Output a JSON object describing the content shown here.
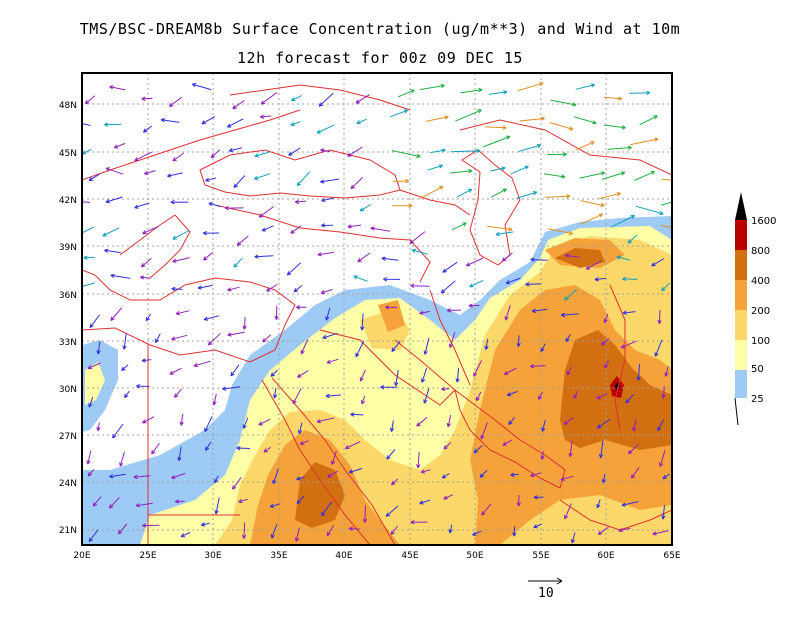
{
  "title": {
    "line1": "TMS/BSC-DREAM8b Surface Concentration (ug/m**3) and Wind at 10m",
    "line2": "12h forecast for 00z 09 DEC 15"
  },
  "map": {
    "lon_range": [
      20,
      65
    ],
    "lat_range": [
      20,
      50
    ],
    "x_ticks": [
      "20E",
      "25E",
      "30E",
      "35E",
      "40E",
      "45E",
      "50E",
      "55E",
      "60E",
      "65E"
    ],
    "y_ticks": [
      "21N",
      "24N",
      "27N",
      "30N",
      "33N",
      "36N",
      "39N",
      "42N",
      "45N",
      "48N"
    ],
    "gridlines": true,
    "borders_color": "#e03030"
  },
  "colorbar": {
    "levels": [
      "25",
      "50",
      "100",
      "200",
      "400",
      "800",
      "1600"
    ],
    "colors": [
      "#9ecbf5",
      "#ffffa8",
      "#fcd86a",
      "#f5a23a",
      "#d26f10",
      "#b80000",
      "#000000"
    ]
  },
  "wind_reference": {
    "label": "10"
  }
}
